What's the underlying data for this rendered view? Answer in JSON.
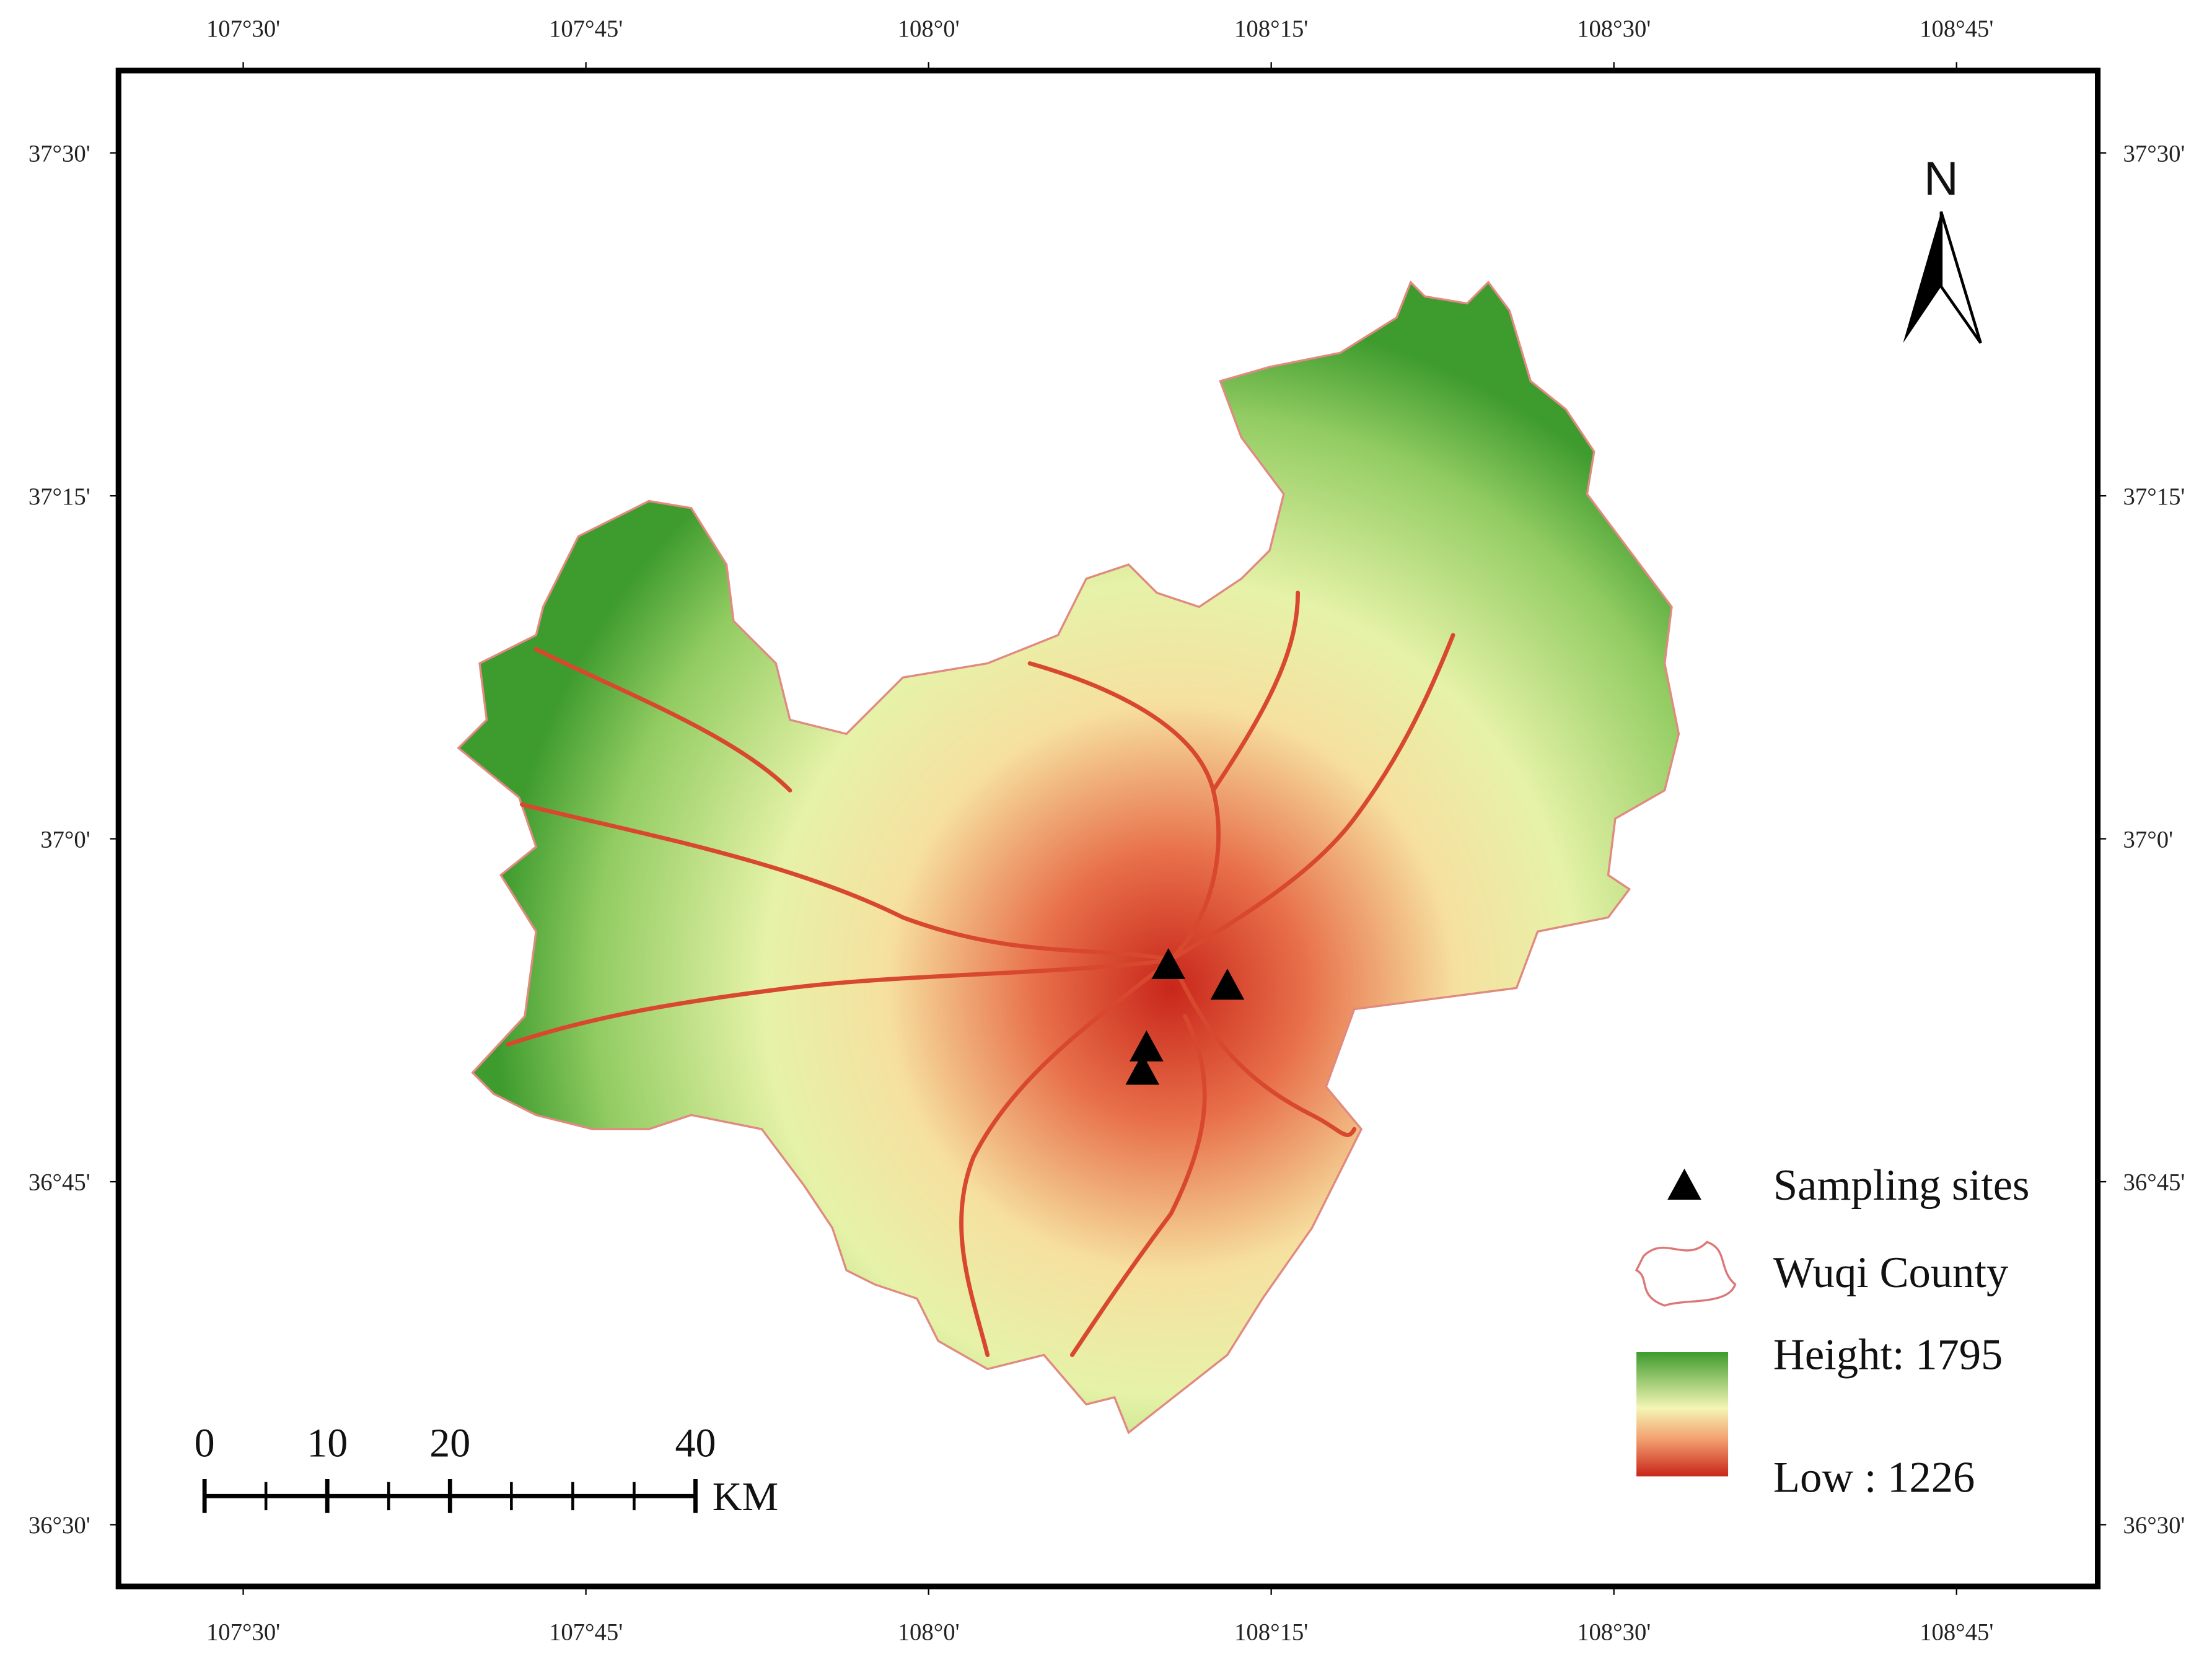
{
  "map": {
    "xlim": [
      107.409,
      108.853
    ],
    "ylim": [
      36.455,
      37.56
    ],
    "xticks": [
      {
        "value": 107.5,
        "label": "107°30'"
      },
      {
        "value": 107.75,
        "label": "107°45'"
      },
      {
        "value": 108,
        "label": "108°0'"
      },
      {
        "value": 108.25,
        "label": "108°15'"
      },
      {
        "value": 108.5,
        "label": "108°30'"
      },
      {
        "value": 108.75,
        "label": "108°45'"
      }
    ],
    "yticks": [
      {
        "value": 37.5,
        "label": "37°30'"
      },
      {
        "value": 37.25,
        "label": "37°15'"
      },
      {
        "value": 37,
        "label": "37°0'"
      },
      {
        "value": 36.75,
        "label": "36°45'"
      },
      {
        "value": 36.5,
        "label": "36°30'"
      }
    ],
    "sites": {
      "lon": [
        108.175,
        108.218,
        108.159,
        108.156
      ],
      "lat": [
        36.908,
        36.893,
        36.848,
        36.831
      ]
    },
    "north": "N",
    "legend": {
      "sites": "Sampling sites",
      "county": "Wuqi County",
      "high": "Height: 1795",
      "low": "Low : 1226"
    },
    "scalebar": {
      "ticks": [
        0,
        10,
        20,
        40
      ],
      "unit": "KM"
    }
  }
}
